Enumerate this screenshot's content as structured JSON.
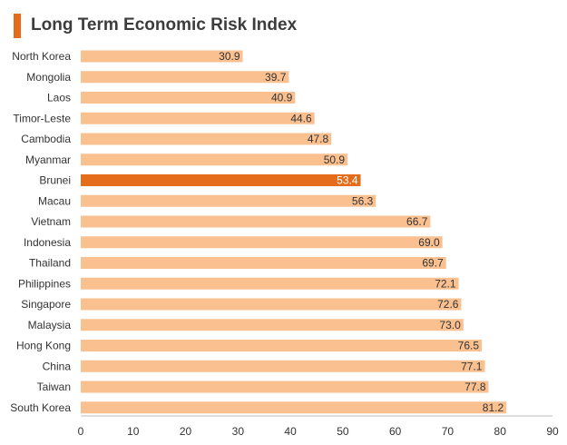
{
  "chart_data": {
    "type": "bar",
    "orientation": "horizontal",
    "title": "Long Term Economic Risk Index",
    "xlabel": "",
    "ylabel": "",
    "xlim": [
      0,
      90
    ],
    "ticks": [
      0,
      10,
      20,
      30,
      40,
      50,
      60,
      70,
      80,
      90
    ],
    "tick_labels": [
      "0",
      "10",
      "20",
      "30",
      "40",
      "50",
      "60",
      "70",
      "80",
      "90"
    ],
    "grid": false,
    "legend": "none",
    "categories": [
      "North Korea",
      "Mongolia",
      "Laos",
      "Timor-Leste",
      "Cambodia",
      "Myanmar",
      "Brunei",
      "Macau",
      "Vietnam",
      "Indonesia",
      "Thailand",
      "Philippines",
      "Singapore",
      "Malaysia",
      "Hong Kong",
      "China",
      "Taiwan",
      "South Korea"
    ],
    "values": [
      30.9,
      39.7,
      40.9,
      44.6,
      47.8,
      50.9,
      53.4,
      56.3,
      66.7,
      69.0,
      69.7,
      72.1,
      72.6,
      73.0,
      76.5,
      77.1,
      77.8,
      81.2
    ],
    "value_labels": [
      "30.9",
      "39.7",
      "40.9",
      "44.6",
      "47.8",
      "50.9",
      "53.4",
      "56.3",
      "66.7",
      "69.0",
      "69.7",
      "72.1",
      "72.6",
      "73.0",
      "76.5",
      "77.1",
      "77.8",
      "81.2"
    ],
    "highlight": "Brunei",
    "colors": {
      "bar": "#FAC090",
      "highlight": "#E46C1B",
      "accent": "#E46C1B",
      "label": "#333333",
      "highlight_label": "#ffffff",
      "axis": "#bfbfbf"
    }
  }
}
